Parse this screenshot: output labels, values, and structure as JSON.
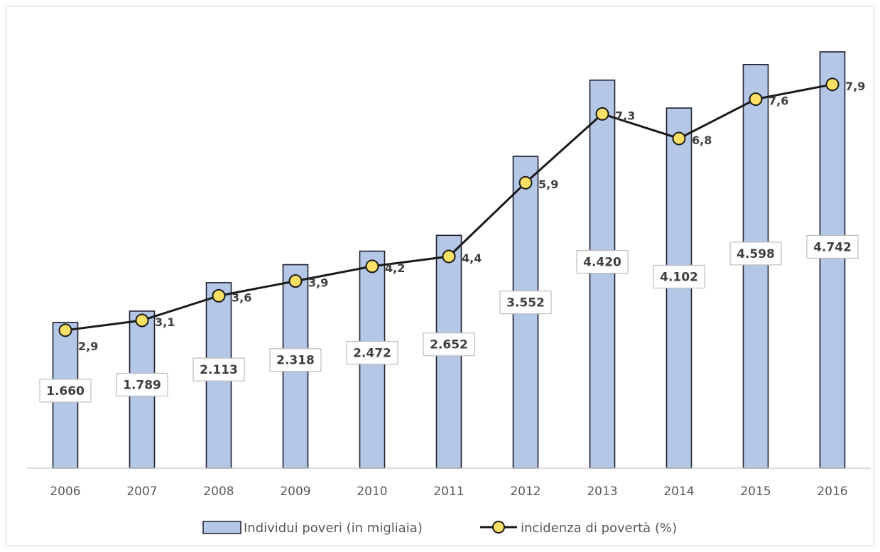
{
  "chart_data": {
    "type": "bar",
    "categories": [
      "2006",
      "2007",
      "2008",
      "2009",
      "2010",
      "2011",
      "2012",
      "2013",
      "2014",
      "2015",
      "2016"
    ],
    "series": [
      {
        "name": "Individui poveri (in migliaia)",
        "type": "bar",
        "values": [
          1660,
          1789,
          2113,
          2318,
          2472,
          2652,
          3552,
          4420,
          4102,
          4598,
          4742
        ],
        "labels": [
          "1.660",
          "1.789",
          "2.113",
          "2.318",
          "2.472",
          "2.652",
          "3.552",
          "4.420",
          "4.102",
          "4.598",
          "4.742"
        ],
        "color": "#b4c7e7",
        "border_color": "#1f1f2e"
      },
      {
        "name": "incidenza di povertà (%)",
        "type": "line",
        "values": [
          2.9,
          3.1,
          3.6,
          3.9,
          4.2,
          4.4,
          5.9,
          7.3,
          6.8,
          7.6,
          7.9
        ],
        "labels": [
          "2,9",
          "3,1",
          "3,6",
          "3,9",
          "4,2",
          "4,4",
          "5,9",
          "7,3",
          "6,8",
          "7,6",
          "7,9"
        ],
        "color": "#1a1a1a",
        "marker_color": "#ffe066"
      }
    ],
    "title": "",
    "xlabel": "",
    "ylabel": "",
    "legend_position": "bottom",
    "grid": false
  }
}
